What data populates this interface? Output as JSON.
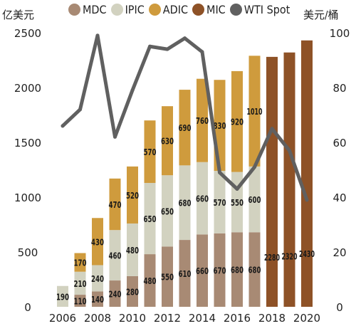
{
  "chart_data": {
    "type": "bar",
    "left_axis_unit": "亿美元",
    "right_axis_unit": "美元/桶",
    "legend": [
      {
        "name": "MDC",
        "color": "#a88a74"
      },
      {
        "name": "IPIC",
        "color": "#d2d2c0"
      },
      {
        "name": "ADIC",
        "color": "#cf9b3d"
      },
      {
        "name": "MIC",
        "color": "#8e5227"
      },
      {
        "name": "WTI Spot",
        "color": "#606060"
      }
    ],
    "years": [
      2006,
      2007,
      2008,
      2009,
      2010,
      2011,
      2012,
      2013,
      2014,
      2015,
      2016,
      2017,
      2018,
      2019,
      2020
    ],
    "x_tick_labels": [
      "2006",
      "2008",
      "2010",
      "2012",
      "2014",
      "2016",
      "2018",
      "2020"
    ],
    "ylim_left": [
      0,
      2500
    ],
    "yticks_left": [
      "0",
      "500",
      "1000",
      "1500",
      "2000",
      "2500"
    ],
    "ylim_right": [
      0,
      100
    ],
    "yticks_right": [
      "0",
      "20",
      "40",
      "60",
      "80",
      "100"
    ],
    "series": [
      {
        "name": "MDC",
        "values": [
          null,
          110,
          140,
          240,
          280,
          480,
          550,
          610,
          660,
          670,
          680,
          680,
          null,
          null,
          null
        ]
      },
      {
        "name": "IPIC",
        "values": [
          190,
          210,
          240,
          460,
          480,
          650,
          650,
          680,
          660,
          570,
          550,
          600,
          null,
          null,
          null
        ]
      },
      {
        "name": "ADIC",
        "values": [
          null,
          170,
          430,
          470,
          520,
          570,
          630,
          690,
          760,
          830,
          920,
          1010,
          null,
          null,
          null
        ]
      },
      {
        "name": "MIC",
        "values": [
          null,
          null,
          null,
          null,
          null,
          null,
          null,
          null,
          null,
          null,
          null,
          null,
          2280,
          2320,
          2430
        ]
      }
    ],
    "bar_labels": {
      "MDC": [
        "",
        "110",
        "140",
        "240",
        "280",
        "480",
        "550",
        "610",
        "660",
        "670",
        "680",
        "680",
        "",
        "",
        ""
      ],
      "IPIC": [
        "190",
        "210",
        "240",
        "460",
        "480",
        "650",
        "650",
        "680",
        "660",
        "570",
        "550",
        "600",
        "",
        "",
        ""
      ],
      "ADIC": [
        "",
        "170",
        "430",
        "470",
        "520",
        "570",
        "630",
        "690",
        "760",
        "830",
        "920",
        "1010",
        "",
        "",
        ""
      ],
      "MIC": [
        "",
        "",
        "",
        "",
        "",
        "",
        "",
        "",
        "",
        "",
        "",
        "",
        "2280",
        "2320",
        "2430"
      ]
    },
    "wti_spot": [
      66,
      72,
      99,
      62,
      79,
      95,
      94,
      98,
      93,
      49,
      43,
      51,
      65,
      57,
      39
    ]
  }
}
